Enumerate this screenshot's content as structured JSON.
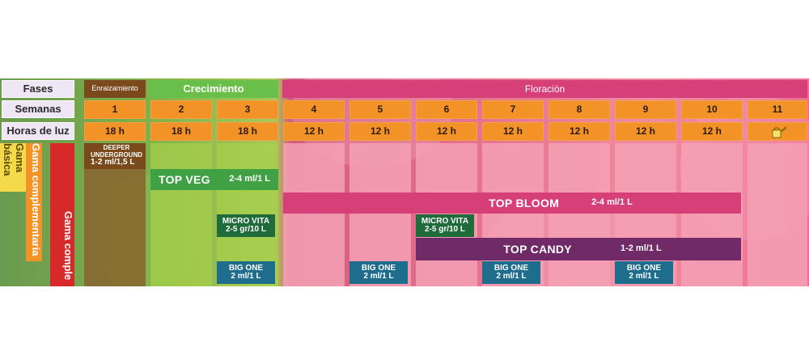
{
  "row_labels": {
    "phases": "Fases",
    "weeks": "Semanas",
    "light": "Horas de luz"
  },
  "phases": {
    "rooting": "Enraizamiento",
    "growth": "Crecimiento",
    "flowering": "Floración"
  },
  "weeks": [
    "1",
    "2",
    "3",
    "4",
    "5",
    "6",
    "7",
    "8",
    "9",
    "10",
    "11"
  ],
  "light_hours": [
    "18 h",
    "18 h",
    "18 h",
    "12 h",
    "12 h",
    "12 h",
    "12 h",
    "12 h",
    "12 h",
    "12 h"
  ],
  "ranges": {
    "basic": "Gama básica",
    "complementary": "Gama complementaria",
    "complete": "Gama comple"
  },
  "products": {
    "deeper_name": "DEEPER UNDERGROUND",
    "deeper_dose": "1-2 ml/1,5 L",
    "topveg_name": "TOP VEG",
    "topveg_dose": "2-4 ml/1 L",
    "topbloom_name": "TOP BLOOM",
    "topbloom_dose": "2-4 ml/1 L",
    "microvita_name": "MICRO VITA",
    "microvita_dose": "2-5 gr/10 L",
    "topcandy_name": "TOP CANDY",
    "topcandy_dose": "1-2 ml/1 L",
    "bigone_name": "BIG ONE",
    "bigone_dose": "2 ml/1 L"
  },
  "colors": {
    "header": "#efe6f5",
    "orange": "#f39327",
    "rooting": "#7a4a1c",
    "growth": "#6abf4b",
    "flowering": "#d63f78",
    "topveg": "#3fa044",
    "microvita": "#1f6b3a",
    "topcandy": "#6f2a67",
    "bigone": "#1f6d8c",
    "basic": "#f4d94a",
    "complementary": "#f39327",
    "complete": "#d72929"
  },
  "icons": {
    "week11": "watering-can-icon"
  }
}
